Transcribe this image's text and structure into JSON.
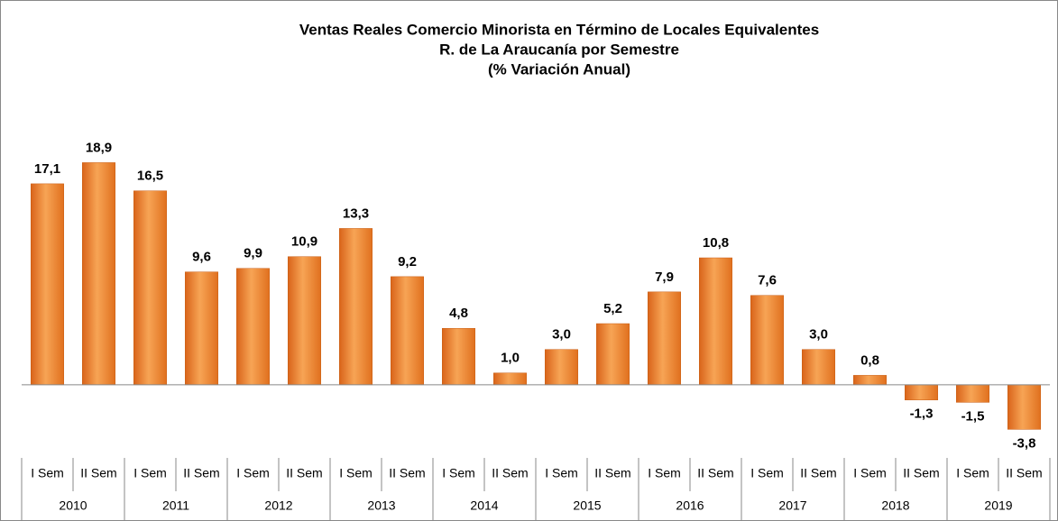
{
  "chart_data": {
    "type": "bar",
    "title": [
      "Ventas Reales Comercio Minorista en Término de Locales Equivalentes",
      "R. de La Araucanía por Semestre",
      "(% Variación Anual)"
    ],
    "categories": [
      "I Sem",
      "II Sem",
      "I Sem",
      "II Sem",
      "I Sem",
      "II Sem",
      "I Sem",
      "II Sem",
      "I Sem",
      "II Sem",
      "I Sem",
      "II Sem",
      "I Sem",
      "II Sem",
      "I Sem",
      "II Sem",
      "I Sem",
      "II Sem",
      "I Sem",
      "II Sem"
    ],
    "years": [
      "2010",
      "2011",
      "2012",
      "2013",
      "2014",
      "2015",
      "2016",
      "2017",
      "2018",
      "2019"
    ],
    "values": [
      17.1,
      18.9,
      16.5,
      9.6,
      9.9,
      10.9,
      13.3,
      9.2,
      4.8,
      1.0,
      3.0,
      5.2,
      7.9,
      10.8,
      7.6,
      3.0,
      0.8,
      -1.3,
      -1.5,
      -3.8
    ],
    "value_labels": [
      "17,1",
      "18,9",
      "16,5",
      "9,6",
      "9,9",
      "10,9",
      "13,3",
      "9,2",
      "4,8",
      "1,0",
      "3,0",
      "5,2",
      "7,9",
      "10,8",
      "7,6",
      "3,0",
      "0,8",
      "-1,3",
      "-1,5",
      "-3,8"
    ],
    "color": "#f08a2c",
    "ylim": [
      -5,
      22
    ]
  }
}
